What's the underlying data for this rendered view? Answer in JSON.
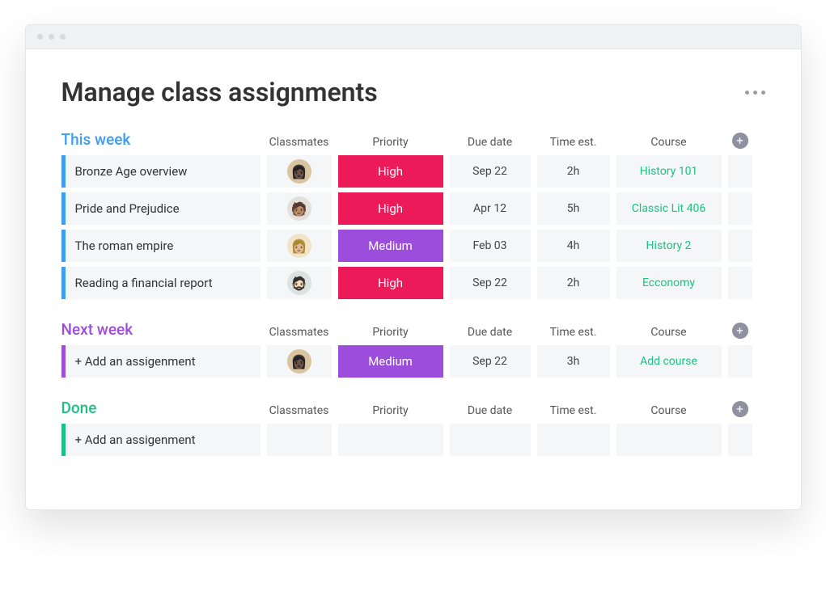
{
  "pageTitle": "Manage class assignments",
  "columns": {
    "classmates": "Classmates",
    "priority": "Priority",
    "dueDate": "Due date",
    "timeEst": "Time est.",
    "course": "Course"
  },
  "colors": {
    "priorityHigh": "#ec1a58",
    "priorityMedium": "#9c4ddb",
    "courseText": "#1bc283",
    "thisWeek": "#3e9df0",
    "nextWeek": "#9c4ddb",
    "done": "#1bc283",
    "rowBg": "#f5f6f8",
    "avatarBg1": "#d9c4a0",
    "avatarBg2": "#e3e0dc",
    "avatarBg3": "#f0e5c9",
    "avatarBg4": "#dbe3e0"
  },
  "sections": [
    {
      "id": "this-week",
      "title": "This week",
      "titleColorKey": "thisWeek",
      "accentKey": "thisWeek",
      "rows": [
        {
          "task": "Bronze Age overview",
          "avatarBgKey": "avatarBg1",
          "avatarEmoji": "👩🏿",
          "priority": "High",
          "priorityKey": "priorityHigh",
          "due": "Sep 22",
          "time": "2h",
          "course": "History 101"
        },
        {
          "task": "Pride and Prejudice",
          "avatarBgKey": "avatarBg2",
          "avatarEmoji": "🧑🏽",
          "priority": "High",
          "priorityKey": "priorityHigh",
          "due": "Apr 12",
          "time": "5h",
          "course": "Classic Lit 406"
        },
        {
          "task": "The roman empire",
          "avatarBgKey": "avatarBg3",
          "avatarEmoji": "👩🏼",
          "priority": "Medium",
          "priorityKey": "priorityMedium",
          "due": "Feb 03",
          "time": "4h",
          "course": "History 2"
        },
        {
          "task": "Reading a financial report",
          "avatarBgKey": "avatarBg4",
          "avatarEmoji": "🧔🏻",
          "priority": "High",
          "priorityKey": "priorityHigh",
          "due": "Sep 22",
          "time": "2h",
          "course": "Ecconomy"
        }
      ]
    },
    {
      "id": "next-week",
      "title": "Next week",
      "titleColorKey": "nextWeek",
      "accentKey": "nextWeek",
      "rows": [
        {
          "task": "+ Add an  assigenment",
          "avatarBgKey": "avatarBg1",
          "avatarEmoji": "👩🏿",
          "priority": "Medium",
          "priorityKey": "priorityMedium",
          "due": "Sep 22",
          "time": "3h",
          "course": "Add course"
        }
      ]
    },
    {
      "id": "done",
      "title": "Done",
      "titleColorKey": "done",
      "accentKey": "done",
      "rows": [
        {
          "task": "+ Add an  assigenment",
          "avatarBgKey": null,
          "avatarEmoji": "",
          "priority": "",
          "priorityKey": null,
          "due": "",
          "time": "",
          "course": ""
        }
      ]
    }
  ]
}
